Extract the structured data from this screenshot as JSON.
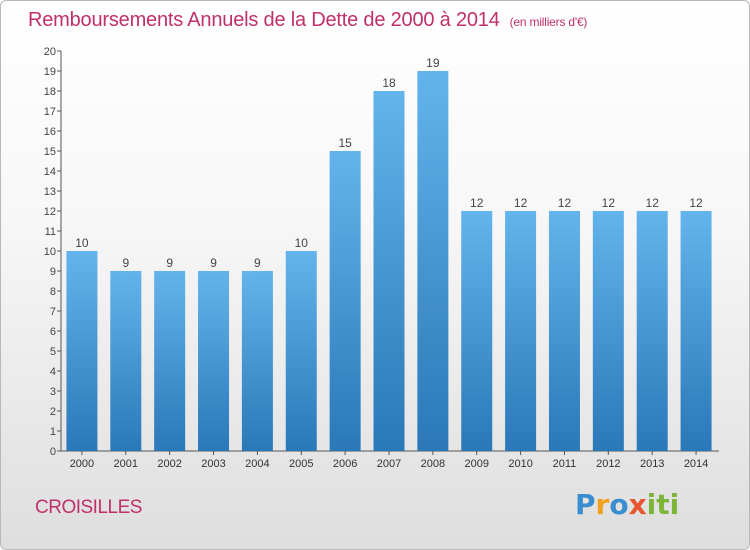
{
  "title": "Remboursements Annuels de la Dette de 2000 à 2014",
  "subtitle": "(en milliers d'€)",
  "commune": "CROISILLES",
  "logo": {
    "text": "Proxiti",
    "colors": [
      "#3a8ed0",
      "#e8542e",
      "#f0a21f",
      "#7cb53a"
    ]
  },
  "colors": {
    "bar_top": "#63b4ec",
    "bar_bottom": "#2a78b8",
    "title": "#c0306b",
    "axis": "#555555"
  },
  "chart_data": {
    "type": "bar",
    "title": "Remboursements Annuels de la Dette de 2000 à 2014",
    "subtitle": "(en milliers d'€)",
    "categories": [
      "2000",
      "2001",
      "2002",
      "2003",
      "2004",
      "2005",
      "2006",
      "2007",
      "2008",
      "2009",
      "2010",
      "2011",
      "2012",
      "2013",
      "2014"
    ],
    "values": [
      10,
      9,
      9,
      9,
      9,
      10,
      15,
      18,
      19,
      12,
      12,
      12,
      12,
      12,
      12
    ],
    "data_labels": [
      "10",
      "9",
      "9",
      "9",
      "9",
      "10",
      "15",
      "18",
      "19",
      "12",
      "12",
      "12",
      "12",
      "12",
      "12"
    ],
    "yticks": [
      "0",
      "1",
      "2",
      "3",
      "4",
      "5",
      "6",
      "7",
      "8",
      "9",
      "10",
      "11",
      "12",
      "13",
      "14",
      "15",
      "16",
      "17",
      "18",
      "19",
      "20"
    ],
    "ylim": [
      0,
      20
    ],
    "grid": false,
    "legend": "none"
  }
}
